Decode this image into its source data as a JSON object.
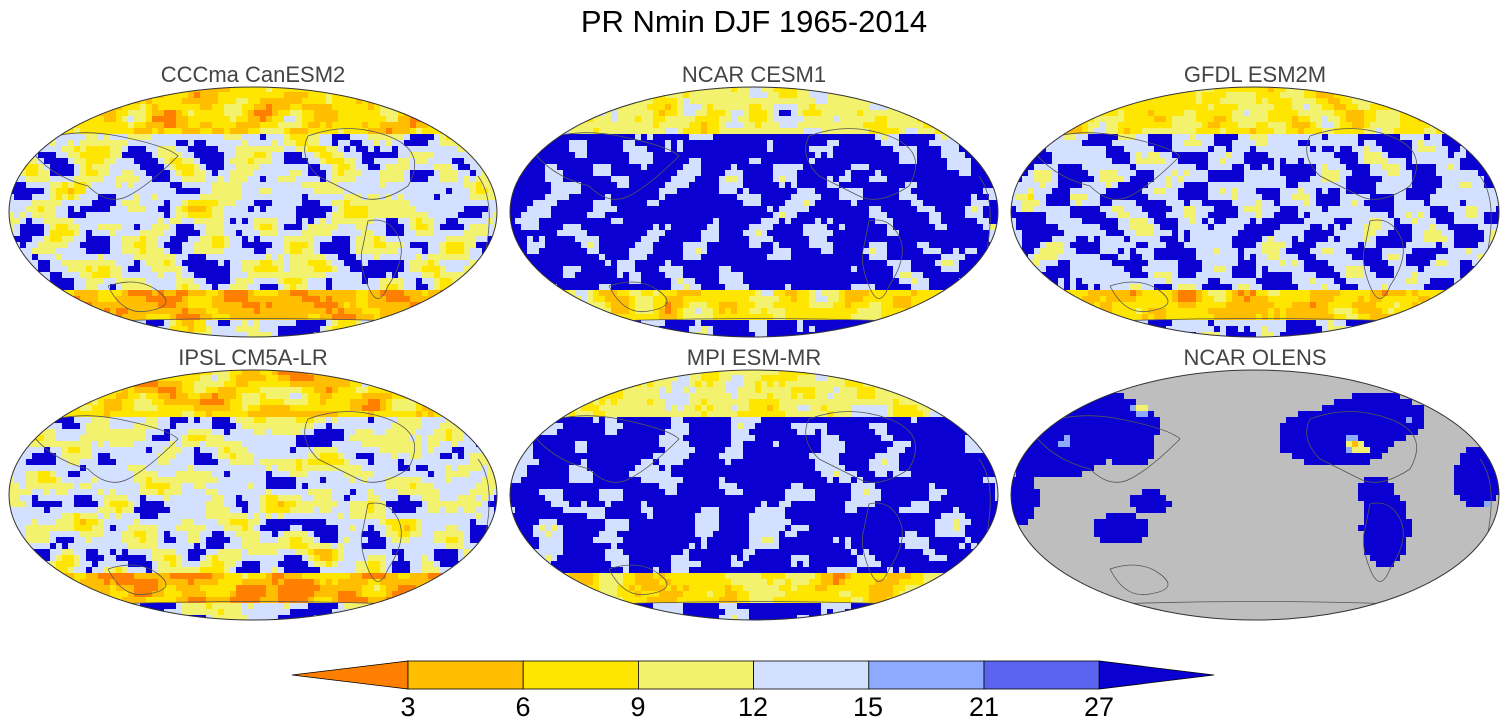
{
  "title": "PR Nmin DJF 1965-2014",
  "panels": [
    {
      "title": "CCCma CanESM2",
      "style": "orange-rich",
      "seed": 11
    },
    {
      "title": "NCAR CESM1",
      "style": "blue-dominant",
      "seed": 23
    },
    {
      "title": "GFDL ESM2M",
      "style": "mixed",
      "seed": 37
    },
    {
      "title": "IPSL CM5A-LR",
      "style": "orange-rich",
      "seed": 41
    },
    {
      "title": "MPI ESM-MR",
      "style": "blue-dominant",
      "seed": 53
    },
    {
      "title": "NCAR OLENS",
      "style": "land-only",
      "seed": 67
    }
  ],
  "colorbar": {
    "labels": [
      "3",
      "6",
      "9",
      "12",
      "15",
      "21",
      "27"
    ],
    "colors": [
      "#ff7f00",
      "#ffbf00",
      "#ffe600",
      "#f2f26e",
      "#d4e0ff",
      "#8eaaff",
      "#5a64f0",
      "#0a00d2"
    ]
  },
  "colors": {
    "ocean_mask": "#bebebe",
    "coastline": "#555555"
  }
}
